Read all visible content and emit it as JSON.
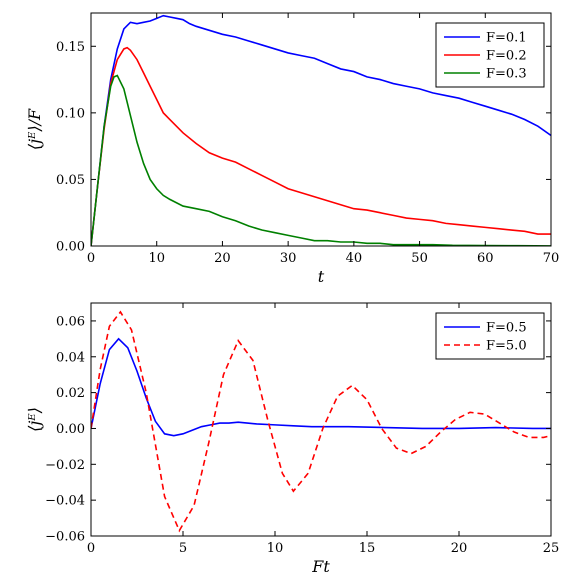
{
  "chart_data": [
    {
      "type": "line",
      "title": "",
      "xlabel": "t",
      "ylabel": "⟨jᴱ⟩/F",
      "xlim": [
        0,
        70
      ],
      "ylim": [
        0,
        0.175
      ],
      "xticks": [
        "0",
        "10",
        "20",
        "30",
        "40",
        "50",
        "60",
        "70"
      ],
      "yticks": [
        "0.00",
        "0.05",
        "0.10",
        "0.15"
      ],
      "grid": false,
      "legend_position": "top-right",
      "series": [
        {
          "name": "F=0.1",
          "color": "#0000ff",
          "dash": "solid",
          "x": [
            0,
            1,
            2,
            3,
            4,
            5,
            6,
            7,
            8,
            9,
            10,
            11,
            12,
            13,
            14,
            15,
            16,
            18,
            20,
            22,
            24,
            26,
            28,
            30,
            32,
            34,
            36,
            38,
            40,
            42,
            44,
            46,
            48,
            50,
            52,
            54,
            56,
            58,
            60,
            62,
            64,
            66,
            68,
            70
          ],
          "y": [
            0,
            0.045,
            0.09,
            0.125,
            0.148,
            0.163,
            0.168,
            0.167,
            0.168,
            0.169,
            0.171,
            0.173,
            0.172,
            0.171,
            0.17,
            0.167,
            0.165,
            0.162,
            0.159,
            0.157,
            0.154,
            0.151,
            0.148,
            0.145,
            0.143,
            0.141,
            0.137,
            0.133,
            0.131,
            0.127,
            0.125,
            0.122,
            0.12,
            0.118,
            0.115,
            0.113,
            0.111,
            0.108,
            0.105,
            0.102,
            0.099,
            0.095,
            0.09,
            0.083
          ]
        },
        {
          "name": "F=0.2",
          "color": "#ff0000",
          "dash": "solid",
          "x": [
            0,
            1,
            2,
            3,
            4,
            5,
            5.5,
            6,
            7,
            8,
            9,
            10,
            11,
            12,
            14,
            16,
            18,
            20,
            22,
            24,
            26,
            28,
            30,
            32,
            34,
            36,
            38,
            40,
            42,
            44,
            46,
            48,
            50,
            52,
            54,
            56,
            58,
            60,
            62,
            64,
            66,
            68,
            70
          ],
          "y": [
            0,
            0.045,
            0.088,
            0.122,
            0.14,
            0.148,
            0.149,
            0.147,
            0.14,
            0.13,
            0.12,
            0.11,
            0.1,
            0.095,
            0.085,
            0.077,
            0.07,
            0.066,
            0.063,
            0.058,
            0.053,
            0.048,
            0.043,
            0.04,
            0.037,
            0.034,
            0.031,
            0.028,
            0.027,
            0.025,
            0.023,
            0.021,
            0.02,
            0.019,
            0.017,
            0.016,
            0.015,
            0.014,
            0.013,
            0.012,
            0.011,
            0.009,
            0.009
          ]
        },
        {
          "name": "F=0.3",
          "color": "#008000",
          "dash": "solid",
          "x": [
            0,
            1,
            2,
            3,
            3.5,
            4,
            5,
            6,
            7,
            8,
            9,
            10,
            11,
            12,
            14,
            16,
            18,
            20,
            22,
            24,
            26,
            28,
            30,
            32,
            34,
            36,
            38,
            40,
            42,
            44,
            46,
            48,
            50,
            52,
            55,
            60,
            65,
            70
          ],
          "y": [
            0,
            0.045,
            0.09,
            0.12,
            0.127,
            0.128,
            0.118,
            0.098,
            0.078,
            0.062,
            0.05,
            0.043,
            0.038,
            0.035,
            0.03,
            0.028,
            0.026,
            0.022,
            0.019,
            0.015,
            0.012,
            0.01,
            0.008,
            0.006,
            0.004,
            0.004,
            0.003,
            0.003,
            0.002,
            0.002,
            0.001,
            0.001,
            0.001,
            0.001,
            0.0005,
            0.0003,
            0.0002,
            0.0001
          ]
        }
      ]
    },
    {
      "type": "line",
      "title": "",
      "xlabel": "Ft",
      "ylabel": "⟨jᴱ⟩",
      "xlim": [
        0,
        25
      ],
      "ylim": [
        -0.06,
        0.07
      ],
      "xticks": [
        "0",
        "5",
        "10",
        "15",
        "20",
        "25"
      ],
      "yticks": [
        "−0.06",
        "−0.04",
        "−0.02",
        "0.00",
        "0.02",
        "0.04",
        "0.06"
      ],
      "grid": false,
      "legend_position": "top-right",
      "series": [
        {
          "name": "F=0.5",
          "color": "#0000ff",
          "dash": "solid",
          "x": [
            0,
            0.5,
            1.0,
            1.5,
            2.0,
            2.5,
            3.0,
            3.5,
            4.0,
            4.5,
            5.0,
            5.5,
            6.0,
            6.5,
            7.0,
            7.5,
            8.0,
            8.5,
            9.0,
            10,
            11,
            12,
            14,
            16,
            18,
            20,
            22,
            24,
            25
          ],
          "y": [
            0,
            0.025,
            0.044,
            0.05,
            0.045,
            0.032,
            0.017,
            0.004,
            -0.003,
            -0.004,
            -0.003,
            -0.001,
            0.001,
            0.002,
            0.003,
            0.003,
            0.0035,
            0.003,
            0.0025,
            0.002,
            0.0015,
            0.001,
            0.001,
            0.0005,
            0.0,
            0.0,
            0.0005,
            0.0,
            0.0
          ]
        },
        {
          "name": "F=5.0",
          "color": "#ff0000",
          "dash": "dashed",
          "x": [
            0,
            0.5,
            1.0,
            1.6,
            2.2,
            3.0,
            4.0,
            4.8,
            5.6,
            6.4,
            7.2,
            8.0,
            8.8,
            9.6,
            10.4,
            11.0,
            11.8,
            12.6,
            13.4,
            14.2,
            15.0,
            15.8,
            16.6,
            17.4,
            18.2,
            19.0,
            19.8,
            20.6,
            21.4,
            22.2,
            23.0,
            23.8,
            24.6,
            25.0
          ],
          "y": [
            0,
            0.033,
            0.057,
            0.065,
            0.055,
            0.02,
            -0.038,
            -0.057,
            -0.043,
            -0.008,
            0.03,
            0.049,
            0.038,
            0.005,
            -0.025,
            -0.035,
            -0.025,
            0.0,
            0.018,
            0.024,
            0.016,
            0.0,
            -0.011,
            -0.014,
            -0.01,
            -0.002,
            0.005,
            0.009,
            0.008,
            0.003,
            -0.002,
            -0.005,
            -0.005,
            -0.004
          ]
        }
      ]
    }
  ]
}
